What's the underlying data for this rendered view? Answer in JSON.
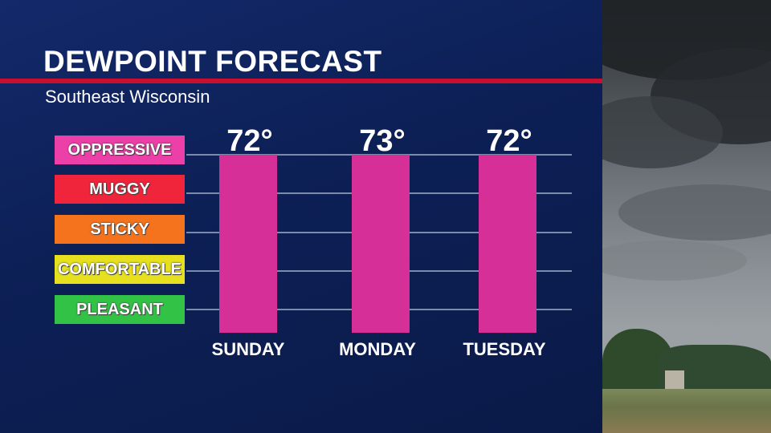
{
  "title": "DEWPOINT FORECAST",
  "subtitle": "Southeast Wisconsin",
  "legend": [
    {
      "label": "OPPRESSIVE",
      "color": "#ec3fa8"
    },
    {
      "label": "MUGGY",
      "color": "#f0243a"
    },
    {
      "label": "STICKY",
      "color": "#f5731c"
    },
    {
      "label": "COMFORTABLE",
      "color": "#e6e01f"
    },
    {
      "label": "PLEASANT",
      "color": "#32c246"
    }
  ],
  "chart_data": {
    "type": "bar",
    "categories": [
      "SUNDAY",
      "MONDAY",
      "TUESDAY"
    ],
    "values": [
      72,
      73,
      72
    ],
    "value_labels": [
      "72°",
      "73°",
      "72°"
    ],
    "bar_color": "#d62f97",
    "grid": true
  },
  "colors": {
    "title_rule": "#c8102e",
    "gridline": "#7b8bab"
  }
}
